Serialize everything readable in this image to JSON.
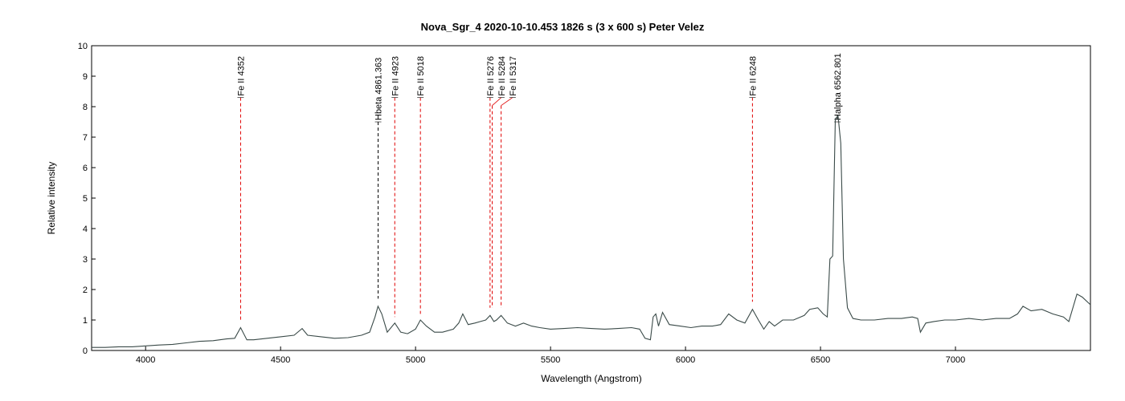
{
  "chart_data": {
    "type": "line",
    "title": "Nova_Sgr_4   2020-10-10.453   1826 s (3 x 600 s)   Peter Velez",
    "xlabel": "Wavelength (Angstrom)",
    "ylabel": "Relative intensity",
    "xlim": [
      3800,
      7500
    ],
    "ylim": [
      0,
      10
    ],
    "xticks": [
      4000,
      4500,
      5000,
      5500,
      6000,
      6500,
      7000
    ],
    "yticks": [
      0,
      1,
      2,
      3,
      4,
      5,
      6,
      7,
      8,
      9,
      10
    ],
    "series": [
      {
        "name": "spectrum",
        "color": "#3a4a48",
        "x": [
          3800,
          3850,
          3900,
          3950,
          4000,
          4050,
          4100,
          4150,
          4200,
          4250,
          4300,
          4330,
          4352,
          4375,
          4400,
          4450,
          4500,
          4550,
          4580,
          4600,
          4650,
          4700,
          4750,
          4800,
          4830,
          4850,
          4861,
          4875,
          4895,
          4923,
          4945,
          4970,
          5000,
          5018,
          5040,
          5070,
          5100,
          5140,
          5160,
          5175,
          5195,
          5220,
          5240,
          5260,
          5276,
          5290,
          5300,
          5317,
          5340,
          5370,
          5400,
          5430,
          5460,
          5500,
          5550,
          5600,
          5650,
          5700,
          5750,
          5800,
          5830,
          5850,
          5870,
          5880,
          5890,
          5900,
          5915,
          5940,
          5980,
          6020,
          6060,
          6100,
          6130,
          6160,
          6190,
          6220,
          6248,
          6270,
          6290,
          6310,
          6330,
          6360,
          6400,
          6440,
          6460,
          6490,
          6510,
          6525,
          6535,
          6545,
          6555,
          6565,
          6575,
          6585,
          6600,
          6620,
          6650,
          6700,
          6750,
          6800,
          6840,
          6860,
          6870,
          6890,
          6920,
          6960,
          7000,
          7050,
          7100,
          7150,
          7200,
          7230,
          7250,
          7280,
          7320,
          7360,
          7400,
          7420,
          7450,
          7470,
          7500
        ],
        "y": [
          0.1,
          0.1,
          0.12,
          0.12,
          0.15,
          0.18,
          0.2,
          0.25,
          0.3,
          0.32,
          0.38,
          0.4,
          0.75,
          0.35,
          0.35,
          0.4,
          0.45,
          0.5,
          0.72,
          0.5,
          0.45,
          0.4,
          0.42,
          0.5,
          0.6,
          1.1,
          1.45,
          1.2,
          0.6,
          0.9,
          0.6,
          0.55,
          0.7,
          1.0,
          0.8,
          0.6,
          0.6,
          0.7,
          0.9,
          1.2,
          0.85,
          0.9,
          0.95,
          1.0,
          1.15,
          0.95,
          1.0,
          1.15,
          0.9,
          0.8,
          0.9,
          0.8,
          0.75,
          0.7,
          0.72,
          0.75,
          0.72,
          0.7,
          0.72,
          0.75,
          0.7,
          0.4,
          0.35,
          1.1,
          1.2,
          0.8,
          1.25,
          0.85,
          0.8,
          0.75,
          0.8,
          0.8,
          0.85,
          1.2,
          1.0,
          0.9,
          1.35,
          1.0,
          0.7,
          0.95,
          0.8,
          1.0,
          1.0,
          1.15,
          1.35,
          1.4,
          1.2,
          1.1,
          3.0,
          3.1,
          7.6,
          7.7,
          6.8,
          3.0,
          1.4,
          1.05,
          1.0,
          1.0,
          1.05,
          1.05,
          1.1,
          1.05,
          0.6,
          0.9,
          0.95,
          1.0,
          1.0,
          1.05,
          1.0,
          1.05,
          1.05,
          1.2,
          1.45,
          1.3,
          1.35,
          1.2,
          1.1,
          0.95,
          1.85,
          1.75,
          1.5
        ]
      }
    ],
    "line_ids": [
      {
        "label": "Fe II 4352",
        "wavelength": 4352,
        "color": "#e00000",
        "label_y": 8.3,
        "line_bottom": 1.0
      },
      {
        "label": "Hbeta 4861.363",
        "wavelength": 4861.363,
        "color": "#000000",
        "label_y": 7.5,
        "line_bottom": 1.7
      },
      {
        "label": "Fe II 4923",
        "wavelength": 4923,
        "color": "#e00000",
        "label_y": 8.3,
        "line_bottom": 1.1
      },
      {
        "label": "Fe II 5018",
        "wavelength": 5018,
        "color": "#e00000",
        "label_y": 8.3,
        "line_bottom": 1.2
      },
      {
        "label": "Fe II 5276",
        "wavelength": 5276,
        "color": "#e00000",
        "label_y": 8.3,
        "line_bottom": 1.4
      },
      {
        "label": "Fe II 5284",
        "wavelength": 5284,
        "color": "#e00000",
        "label_y": 8.3,
        "line_bottom": 1.4
      },
      {
        "label": "Fe II 5317",
        "wavelength": 5317,
        "color": "#e00000",
        "label_y": 8.3,
        "line_bottom": 1.4
      },
      {
        "label": "Fe II 6248",
        "wavelength": 6248,
        "color": "#e00000",
        "label_y": 8.3,
        "line_bottom": 1.6
      },
      {
        "label": "Halpha 6562.801",
        "wavelength": 6562.801,
        "color": "#e00000",
        "label_y": 7.5,
        "line_bottom": 7.5
      }
    ]
  }
}
